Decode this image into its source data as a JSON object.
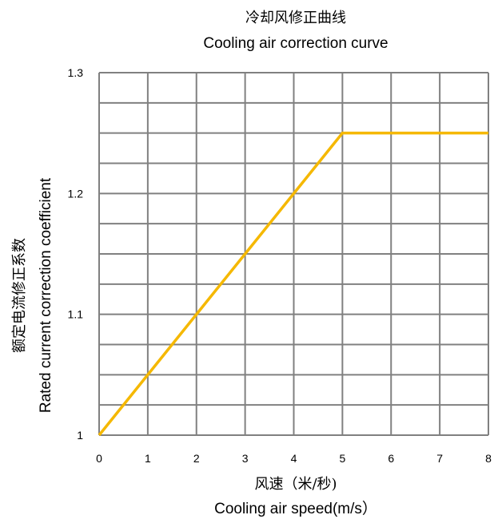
{
  "chart_data": {
    "type": "line",
    "title": "冷却风修正曲线",
    "subtitle": "Cooling air correction curve",
    "xlabel": "风速（米/秒)",
    "xlabel_en": "Cooling air speed(m/s）",
    "ylabel": "额定电流修正系数",
    "ylabel_en": "Rated current correction coefficient",
    "xlim": [
      0,
      8
    ],
    "ylim": [
      1.0,
      1.3
    ],
    "x_ticks": [
      "0",
      "1",
      "2",
      "3",
      "4",
      "5",
      "6",
      "7",
      "8"
    ],
    "y_ticks": [
      "1",
      "1.1",
      "1.2",
      "1.3"
    ],
    "grid": true,
    "grid_minor_y_step": 0.025,
    "series": [
      {
        "color": "#F5B800",
        "x": [
          0,
          5,
          8
        ],
        "y": [
          1.0,
          1.25,
          1.25
        ]
      }
    ]
  },
  "colors": {
    "grid": "#808080",
    "axis": "#808080",
    "text": "#000000"
  }
}
